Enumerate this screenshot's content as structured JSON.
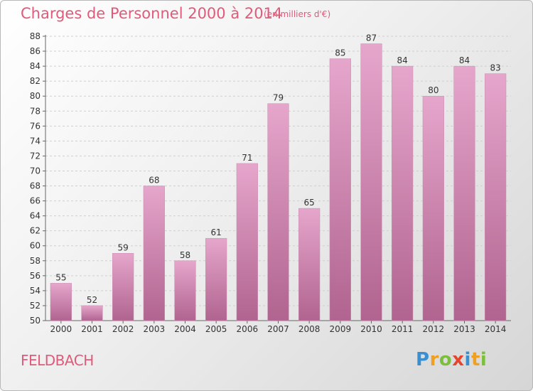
{
  "chart_data": {
    "type": "bar",
    "title": "Charges de Personnel 2000 à 2014",
    "subtitle": "(en milliers d'€)",
    "categories": [
      "2000",
      "2001",
      "2002",
      "2003",
      "2004",
      "2005",
      "2006",
      "2007",
      "2008",
      "2009",
      "2010",
      "2011",
      "2012",
      "2013",
      "2014"
    ],
    "values": [
      55,
      52,
      59,
      68,
      58,
      61,
      71,
      79,
      65,
      85,
      87,
      84,
      80,
      84,
      83
    ],
    "ylim": [
      50,
      88
    ],
    "ytick_step": 2,
    "grid": true,
    "bar_color_top": "#e6a6cc",
    "bar_color_bottom": "#b0648f"
  },
  "commune": "FELDBACH",
  "logo": {
    "letters": [
      "P",
      "r",
      "o",
      "x",
      "i",
      "t",
      "i"
    ],
    "colors": [
      "#3a8fd1",
      "#f0a020",
      "#7cbf3a",
      "#e8442c",
      "#3a8fd1",
      "#f0a020",
      "#7cbf3a"
    ]
  },
  "colors": {
    "title": "#e05a7a",
    "grid": "#cfcfcf"
  }
}
